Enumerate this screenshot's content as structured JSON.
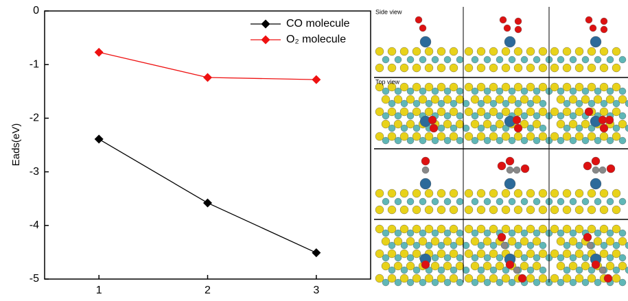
{
  "chart_data": {
    "type": "line",
    "y_label": "Eads(eV)",
    "x": [
      1,
      2,
      3
    ],
    "series": [
      {
        "name": "CO molecule",
        "color": "#000000",
        "values": [
          -2.39,
          -3.58,
          -4.51
        ]
      },
      {
        "name": "O₂ molecule",
        "color": "#ee1111",
        "values": [
          -0.77,
          -1.24,
          -1.28
        ]
      }
    ],
    "xlim": [
      0.5,
      3.5
    ],
    "xticks": [
      1,
      2,
      3
    ],
    "ylim": [
      -5,
      0
    ],
    "yticks": [
      0,
      -1,
      -2,
      -3,
      -4,
      -5
    ],
    "legend": "upper-right",
    "panel_labels": [
      "Side view",
      "Top view"
    ]
  }
}
